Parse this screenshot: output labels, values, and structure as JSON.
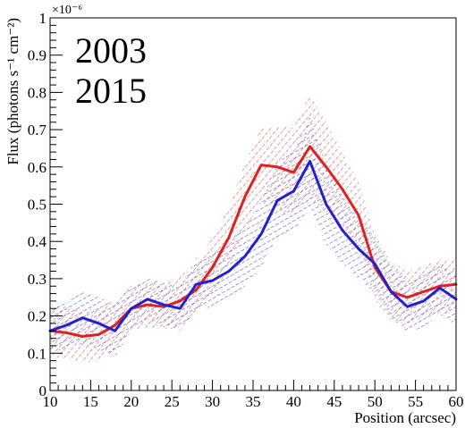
{
  "chart_data": {
    "type": "line",
    "xlabel": "Position (arcsec)",
    "ylabel": "Flux (photons s⁻¹ cm⁻²)",
    "y_exponent_label": "×10⁻⁶",
    "xlim": [
      10,
      60
    ],
    "ylim": [
      0,
      1.0
    ],
    "x_ticks": [
      10,
      15,
      20,
      25,
      30,
      35,
      40,
      45,
      50,
      55,
      60
    ],
    "x_tick_labels": [
      "10",
      "15",
      "20",
      "25",
      "30",
      "35",
      "40",
      "45",
      "50",
      "55",
      "60"
    ],
    "y_ticks": [
      0,
      0.1,
      0.2,
      0.3,
      0.4,
      0.5,
      0.6,
      0.7,
      0.8,
      0.9,
      1
    ],
    "y_tick_labels": [
      "0",
      "0.1",
      "0.2",
      "0.3",
      "0.4",
      "0.5",
      "0.6",
      "0.7",
      "0.8",
      "0.9",
      "1"
    ],
    "grid": false,
    "legend_placement": "top-left",
    "series": [
      {
        "name": "2003",
        "color": "#dd2222",
        "x": [
          10,
          12,
          14,
          16,
          18,
          20,
          22,
          24,
          26,
          28,
          30,
          32,
          34,
          36,
          38,
          40,
          42,
          44,
          46,
          48,
          50,
          52,
          54,
          56,
          58,
          60
        ],
        "y": [
          0.16,
          0.155,
          0.145,
          0.15,
          0.175,
          0.22,
          0.23,
          0.225,
          0.24,
          0.27,
          0.33,
          0.41,
          0.52,
          0.605,
          0.6,
          0.585,
          0.655,
          0.6,
          0.54,
          0.47,
          0.33,
          0.265,
          0.25,
          0.265,
          0.28,
          0.285
        ],
        "band_halfwidth": [
          0.07,
          0.07,
          0.07,
          0.07,
          0.07,
          0.06,
          0.06,
          0.06,
          0.07,
          0.07,
          0.08,
          0.08,
          0.09,
          0.1,
          0.11,
          0.12,
          0.14,
          0.12,
          0.1,
          0.09,
          0.09,
          0.08,
          0.07,
          0.07,
          0.07,
          0.07
        ]
      },
      {
        "name": "2015",
        "color": "#2222cc",
        "x": [
          10,
          12,
          14,
          16,
          18,
          20,
          22,
          24,
          26,
          28,
          30,
          32,
          34,
          36,
          38,
          40,
          42,
          44,
          46,
          48,
          50,
          52,
          54,
          56,
          58,
          60
        ],
        "y": [
          0.16,
          0.175,
          0.195,
          0.18,
          0.16,
          0.22,
          0.245,
          0.23,
          0.22,
          0.285,
          0.295,
          0.32,
          0.36,
          0.42,
          0.51,
          0.535,
          0.615,
          0.5,
          0.43,
          0.38,
          0.34,
          0.265,
          0.225,
          0.24,
          0.275,
          0.245
        ],
        "band_halfwidth": [
          0.06,
          0.06,
          0.07,
          0.07,
          0.07,
          0.06,
          0.06,
          0.06,
          0.06,
          0.07,
          0.07,
          0.08,
          0.08,
          0.09,
          0.1,
          0.11,
          0.12,
          0.11,
          0.09,
          0.08,
          0.08,
          0.07,
          0.07,
          0.07,
          0.07,
          0.07
        ]
      }
    ]
  }
}
